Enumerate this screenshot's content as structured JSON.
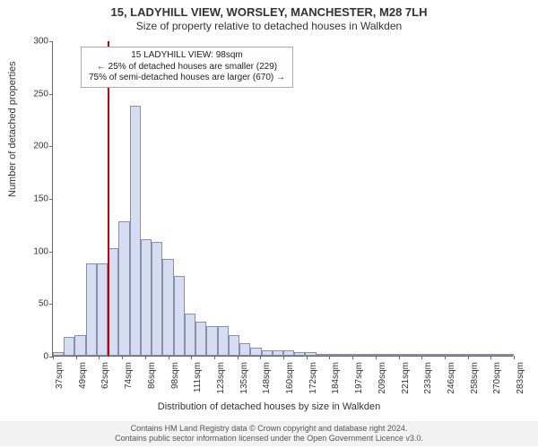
{
  "title": {
    "line1": "15, LADYHILL VIEW, WORSLEY, MANCHESTER, M28 7LH",
    "line2": "Size of property relative to detached houses in Walkden",
    "fontsize_line1": 13,
    "fontsize_line2": 12
  },
  "chart": {
    "type": "histogram",
    "ylabel": "Number of detached properties",
    "xlabel": "Distribution of detached houses by size in Walkden",
    "label_fontsize": 11,
    "ylim": [
      0,
      300
    ],
    "ytick_step": 50,
    "yticks": [
      0,
      50,
      100,
      150,
      200,
      250,
      300
    ],
    "xtick_labels": [
      "37sqm",
      "49sqm",
      "62sqm",
      "74sqm",
      "86sqm",
      "98sqm",
      "111sqm",
      "123sqm",
      "135sqm",
      "148sqm",
      "160sqm",
      "172sqm",
      "184sqm",
      "197sqm",
      "209sqm",
      "221sqm",
      "233sqm",
      "246sqm",
      "258sqm",
      "270sqm",
      "283sqm"
    ],
    "values": [
      3,
      18,
      20,
      88,
      88,
      102,
      128,
      238,
      111,
      108,
      92,
      76,
      40,
      32,
      28,
      28,
      20,
      12,
      8,
      5,
      5,
      5,
      3,
      3,
      2,
      2,
      2,
      2,
      2,
      2,
      2,
      1,
      1,
      1,
      1,
      1,
      1,
      1,
      1,
      1,
      1,
      1
    ],
    "bar_fill": "#d6ddf2",
    "bar_border": "#888fa8",
    "background_color": "#ffffff",
    "axis_color": "#666666",
    "tick_fontsize": 10,
    "marker": {
      "position_bin_index": 5,
      "color": "#cc0000",
      "width": 1.5
    }
  },
  "info_box": {
    "line1": "15 LADYHILL VIEW: 98sqm",
    "line2": "← 25% of detached houses are smaller (229)",
    "line3": "75% of semi-detached houses are larger (670) →",
    "border_color": "#aaaaaa",
    "background": "#fefefe",
    "fontsize": 10
  },
  "footer": {
    "line1": "Contains HM Land Registry data © Crown copyright and database right 2024.",
    "line2": "Contains public sector information licensed under the Open Government Licence v3.0.",
    "fontsize": 9,
    "color": "#555555",
    "background": "#f2f2f2"
  }
}
